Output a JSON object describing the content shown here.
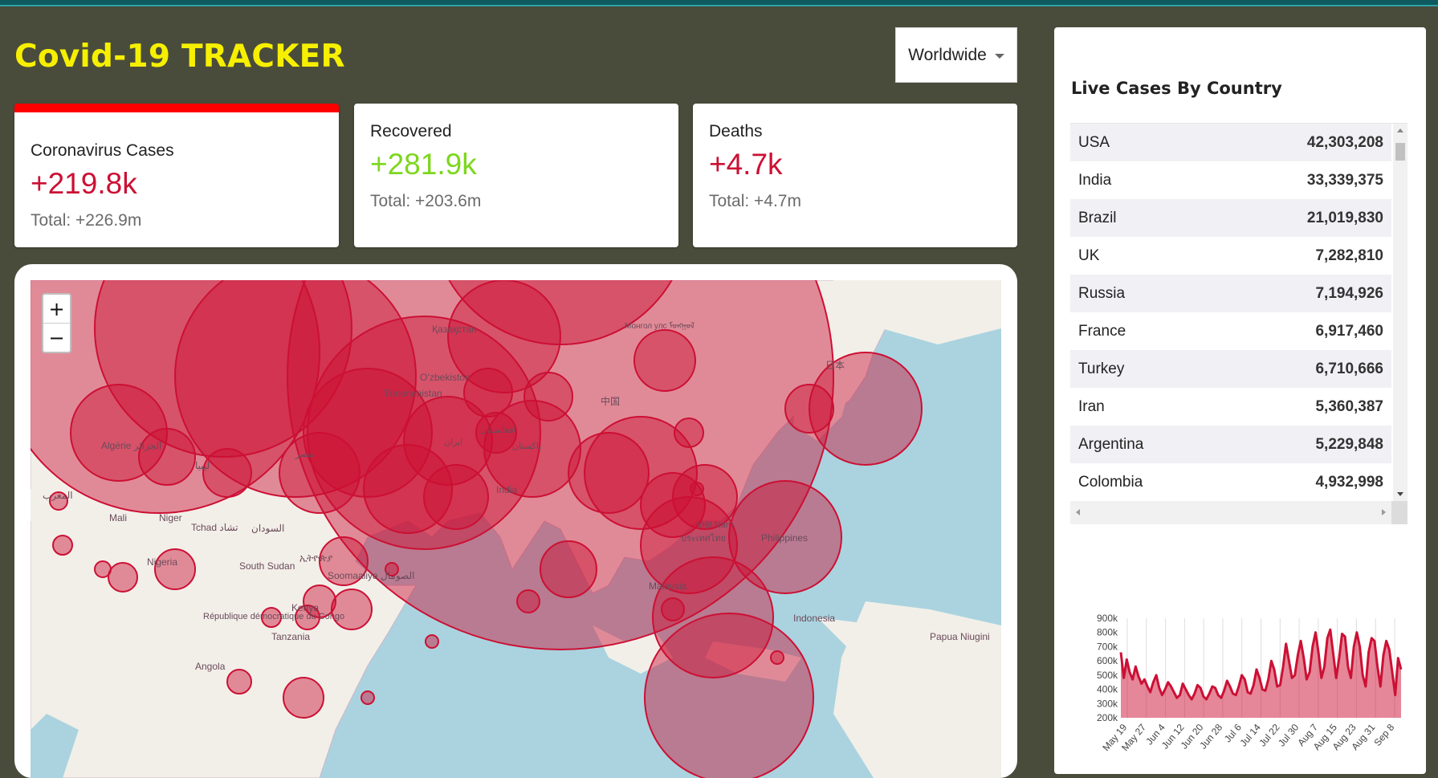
{
  "app": {
    "title": "Covid-19 TRACKER"
  },
  "country_select": {
    "selected": "Worldwide"
  },
  "stats": [
    {
      "label": "Coronavirus Cases",
      "value": "+219.8k",
      "total": "Total: +226.9m",
      "color": "#cc1034",
      "selected": true
    },
    {
      "label": "Recovered",
      "value": "+281.9k",
      "total": "Total: +203.6m",
      "color": "#7dd71d",
      "selected": false
    },
    {
      "label": "Deaths",
      "value": "+4.7k",
      "total": "Total: +4.7m",
      "color": "#cc1034",
      "selected": false
    }
  ],
  "map": {
    "zoom_in": "+",
    "zoom_out": "−",
    "circle_color": "#cc1034",
    "labels": [
      "Қазақстан",
      "Oʻzbekiston",
      "Türkmenistan",
      "中国",
      "日本",
      "Монгол улс ᠮᠣᠩᠭᠣᠯ",
      "India",
      "Mali",
      "Niger",
      "Tchad تشاد",
      "السودان",
      "Nigeria",
      "South Sudan",
      "ኢትዮጵያ",
      "Soomaaliya الصومال",
      "Kenya",
      "République démocratique du Congo",
      "Tanzania",
      "Angola",
      "Algérie الجزائر",
      "ليبيا",
      "مصر",
      "المغرب",
      "Philippines",
      "Malaysia",
      "Indonesia",
      "Papua Niugini",
      "ประเทศไทย",
      "Việt Nam",
      "ایران",
      "افغانستان",
      "پاکستان"
    ]
  },
  "live_cases": {
    "title": "Live Cases By Country",
    "rows": [
      {
        "country": "USA",
        "cases": "42,303,208"
      },
      {
        "country": "India",
        "cases": "33,339,375"
      },
      {
        "country": "Brazil",
        "cases": "21,019,830"
      },
      {
        "country": "UK",
        "cases": "7,282,810"
      },
      {
        "country": "Russia",
        "cases": "7,194,926"
      },
      {
        "country": "France",
        "cases": "6,917,460"
      },
      {
        "country": "Turkey",
        "cases": "6,710,666"
      },
      {
        "country": "Iran",
        "cases": "5,360,387"
      },
      {
        "country": "Argentina",
        "cases": "5,229,848"
      },
      {
        "country": "Colombia",
        "cases": "4,932,998"
      }
    ]
  },
  "chart_data": {
    "type": "area",
    "title": "",
    "xlabel": "",
    "ylabel": "",
    "ylim": [
      200000,
      900000
    ],
    "y_tick_labels": [
      "900k",
      "800k",
      "700k",
      "600k",
      "500k",
      "400k",
      "300k",
      "200k"
    ],
    "x_tick_labels": [
      "May 19",
      "May 27",
      "Jun 4",
      "Jun 12",
      "Jun 20",
      "Jun 28",
      "Jul 6",
      "Jul 14",
      "Jul 22",
      "Jul 30",
      "Aug 7",
      "Aug 15",
      "Aug 23",
      "Aug 31",
      "Sep 8"
    ],
    "grid": "vertical",
    "line_color": "#cc1034",
    "fill_color": "rgba(204,16,52,0.5)",
    "series": [
      {
        "values": [
          660000,
          480000,
          610000,
          520000,
          470000,
          560000,
          490000,
          440000,
          470000,
          420000,
          380000,
          450000,
          500000,
          410000,
          360000,
          400000,
          450000,
          420000,
          380000,
          340000,
          360000,
          440000,
          400000,
          360000,
          330000,
          370000,
          430000,
          410000,
          350000,
          330000,
          370000,
          420000,
          410000,
          360000,
          340000,
          390000,
          460000,
          420000,
          370000,
          360000,
          420000,
          500000,
          470000,
          380000,
          370000,
          430000,
          540000,
          480000,
          400000,
          390000,
          470000,
          600000,
          540000,
          420000,
          430000,
          560000,
          720000,
          600000,
          480000,
          500000,
          640000,
          740000,
          620000,
          470000,
          520000,
          700000,
          800000,
          660000,
          480000,
          560000,
          760000,
          820000,
          650000,
          480000,
          620000,
          790000,
          770000,
          560000,
          480000,
          700000,
          800000,
          700000,
          500000,
          420000,
          660000,
          760000,
          740000,
          560000,
          420000,
          640000,
          740000,
          680000,
          520000,
          360000,
          620000,
          540000
        ]
      }
    ]
  }
}
